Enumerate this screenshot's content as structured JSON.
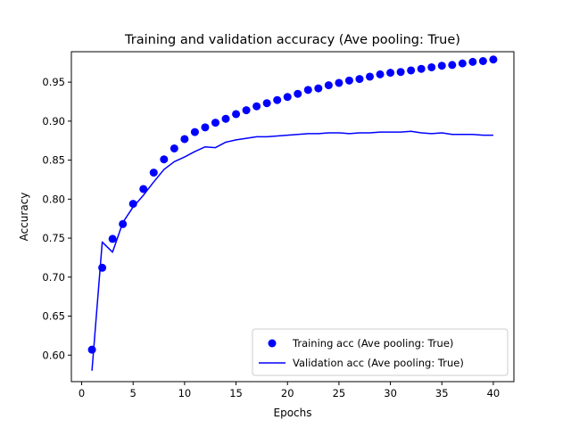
{
  "chart_data": {
    "type": "line",
    "title": "Training and validation accuracy (Ave pooling: True)",
    "xlabel": "Epochs",
    "ylabel": "Accuracy",
    "xlim": [
      -1,
      42
    ],
    "ylim": [
      0.566,
      0.989
    ],
    "xticks": [
      0,
      5,
      10,
      15,
      20,
      25,
      30,
      35,
      40
    ],
    "yticks": [
      0.6,
      0.65,
      0.7,
      0.75,
      0.8,
      0.85,
      0.9,
      0.95
    ],
    "ytick_labels": [
      "0.60",
      "0.65",
      "0.70",
      "0.75",
      "0.80",
      "0.85",
      "0.90",
      "0.95"
    ],
    "legend_position": "lower-right",
    "x": [
      1,
      2,
      3,
      4,
      5,
      6,
      7,
      8,
      9,
      10,
      11,
      12,
      13,
      14,
      15,
      16,
      17,
      18,
      19,
      20,
      21,
      22,
      23,
      24,
      25,
      26,
      27,
      28,
      29,
      30,
      31,
      32,
      33,
      34,
      35,
      36,
      37,
      38,
      39,
      40
    ],
    "series": [
      {
        "name": "Training acc (Ave pooling: True)",
        "style": "points",
        "color": "#0000ff",
        "values": [
          0.607,
          0.712,
          0.749,
          0.768,
          0.794,
          0.813,
          0.834,
          0.851,
          0.865,
          0.877,
          0.886,
          0.892,
          0.898,
          0.903,
          0.909,
          0.914,
          0.919,
          0.923,
          0.927,
          0.931,
          0.935,
          0.94,
          0.942,
          0.946,
          0.949,
          0.952,
          0.954,
          0.957,
          0.96,
          0.962,
          0.963,
          0.965,
          0.967,
          0.969,
          0.971,
          0.972,
          0.974,
          0.976,
          0.977,
          0.979
        ]
      },
      {
        "name": "Validation acc (Ave pooling: True)",
        "style": "line",
        "color": "#0000ff",
        "values": [
          0.58,
          0.745,
          0.732,
          0.77,
          0.79,
          0.805,
          0.822,
          0.838,
          0.848,
          0.854,
          0.861,
          0.867,
          0.866,
          0.873,
          0.876,
          0.878,
          0.88,
          0.88,
          0.881,
          0.882,
          0.883,
          0.884,
          0.884,
          0.885,
          0.885,
          0.884,
          0.885,
          0.885,
          0.886,
          0.886,
          0.886,
          0.887,
          0.885,
          0.884,
          0.885,
          0.883,
          0.883,
          0.883,
          0.882,
          0.882
        ]
      }
    ]
  }
}
